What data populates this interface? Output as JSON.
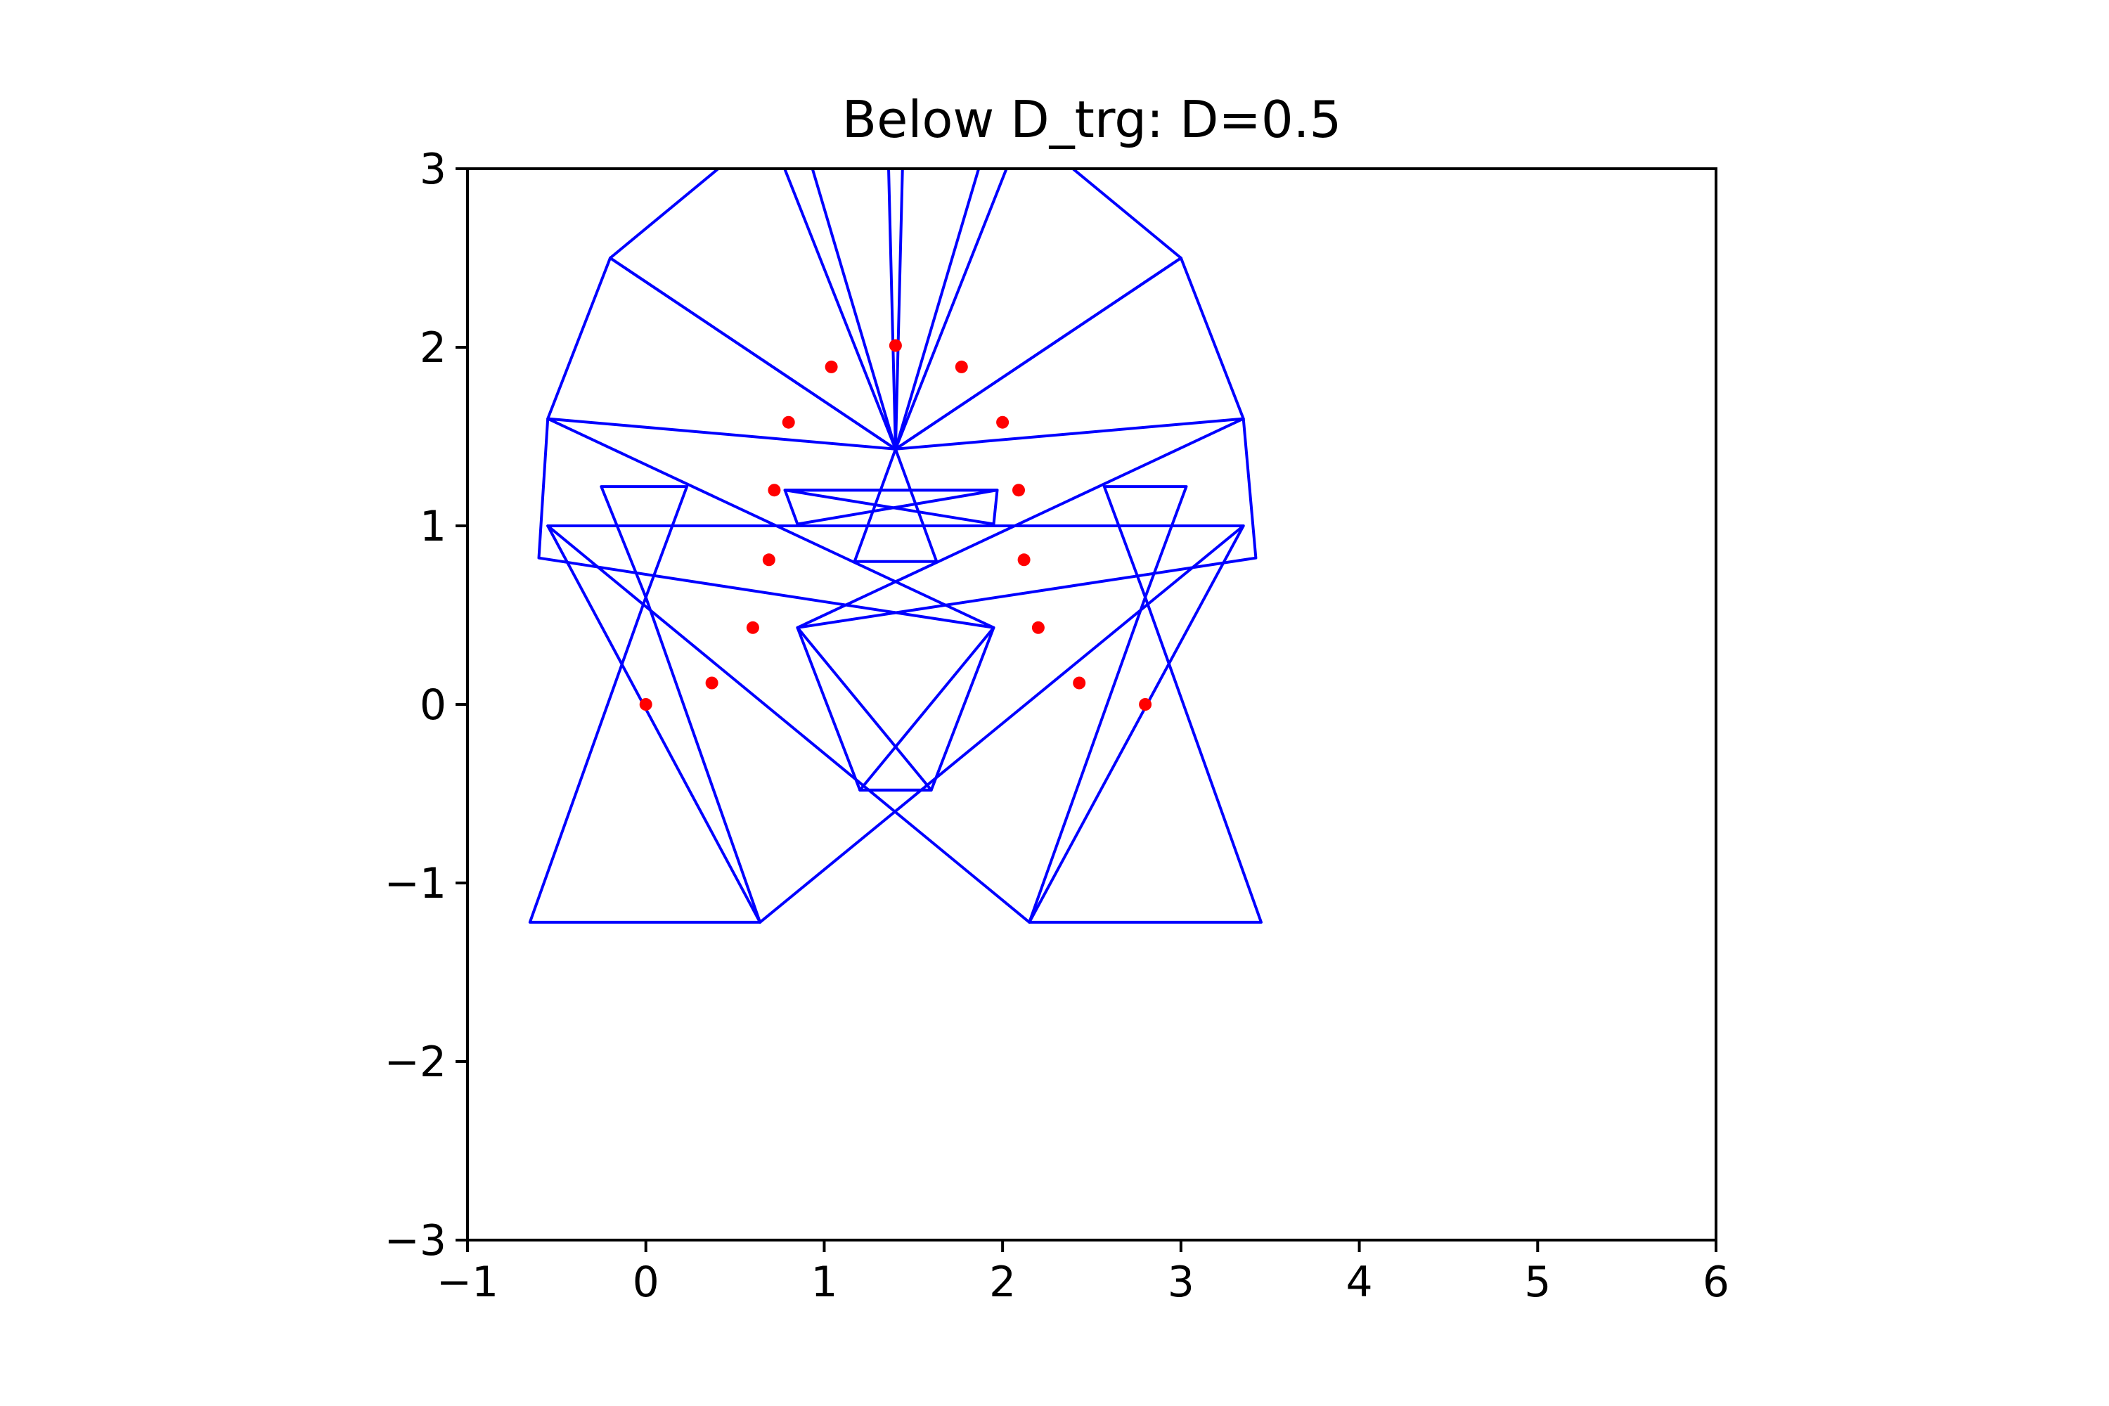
{
  "chart_data": {
    "type": "scatter",
    "title": "Below D_trg: D=0.5",
    "xlabel": "",
    "ylabel": "",
    "xlim": [
      -1,
      6
    ],
    "ylim": [
      -3,
      3
    ],
    "xticks": [
      -1,
      0,
      1,
      2,
      3,
      4,
      5,
      6
    ],
    "yticks": [
      -3,
      -2,
      -1,
      0,
      1,
      2,
      3
    ],
    "xtick_labels": [
      "−1",
      "0",
      "1",
      "2",
      "3",
      "4",
      "5",
      "6"
    ],
    "ytick_labels": [
      "−3",
      "−2",
      "−1",
      "0",
      "1",
      "2",
      "3"
    ],
    "grid": false,
    "colors": {
      "triangles": "#0000ff",
      "points": "#ff0000"
    },
    "points": [
      [
        0.0,
        0.0
      ],
      [
        0.37,
        0.12
      ],
      [
        0.6,
        0.43
      ],
      [
        0.69,
        0.81
      ],
      [
        0.72,
        1.2
      ],
      [
        0.8,
        1.58
      ],
      [
        1.04,
        1.89
      ],
      [
        1.4,
        2.01
      ],
      [
        1.77,
        1.89
      ],
      [
        2.0,
        1.58
      ],
      [
        2.09,
        1.2
      ],
      [
        2.12,
        0.81
      ],
      [
        2.2,
        0.43
      ],
      [
        2.43,
        0.12
      ],
      [
        2.8,
        0.0
      ]
    ],
    "triangles": [
      [
        [
          -0.65,
          -1.22
        ],
        [
          0.64,
          -1.22
        ],
        [
          0.0,
          0.6
        ]
      ],
      [
        [
          2.15,
          -1.22
        ],
        [
          3.45,
          -1.22
        ],
        [
          2.8,
          0.6
        ]
      ],
      [
        [
          0.64,
          -1.22
        ],
        [
          -0.55,
          1.0
        ],
        [
          3.35,
          1.0
        ]
      ],
      [
        [
          2.15,
          -1.22
        ],
        [
          -0.55,
          1.0
        ],
        [
          3.35,
          1.0
        ]
      ],
      [
        [
          -0.6,
          0.82
        ],
        [
          1.95,
          0.43
        ],
        [
          -0.55,
          1.6
        ]
      ],
      [
        [
          3.42,
          0.82
        ],
        [
          0.85,
          0.43
        ],
        [
          3.35,
          1.6
        ]
      ],
      [
        [
          1.2,
          -0.48
        ],
        [
          1.6,
          -0.48
        ],
        [
          0.85,
          0.43
        ]
      ],
      [
        [
          1.2,
          -0.48
        ],
        [
          1.6,
          -0.48
        ],
        [
          1.95,
          0.43
        ]
      ],
      [
        [
          0.0,
          0.6
        ],
        [
          -0.25,
          1.22
        ],
        [
          0.23,
          1.22
        ]
      ],
      [
        [
          2.8,
          0.6
        ],
        [
          2.57,
          1.22
        ],
        [
          3.03,
          1.22
        ]
      ],
      [
        [
          0.78,
          1.2
        ],
        [
          1.97,
          1.2
        ],
        [
          0.85,
          1.01
        ]
      ],
      [
        [
          0.78,
          1.2
        ],
        [
          1.97,
          1.2
        ],
        [
          1.95,
          1.01
        ]
      ],
      [
        [
          1.17,
          0.8
        ],
        [
          1.63,
          0.8
        ],
        [
          1.4,
          1.43
        ]
      ],
      [
        [
          -0.55,
          1.6
        ],
        [
          -0.2,
          2.5
        ],
        [
          1.4,
          1.43
        ]
      ],
      [
        [
          3.35,
          1.6
        ],
        [
          3.0,
          2.5
        ],
        [
          1.4,
          1.43
        ]
      ],
      [
        [
          -0.2,
          2.5
        ],
        [
          0.83,
          3.35
        ],
        [
          1.4,
          1.43
        ]
      ],
      [
        [
          3.0,
          2.5
        ],
        [
          1.97,
          3.35
        ],
        [
          1.4,
          1.43
        ]
      ],
      [
        [
          0.6,
          3.45
        ],
        [
          1.4,
          1.43
        ],
        [
          1.45,
          3.45
        ]
      ],
      [
        [
          2.2,
          3.45
        ],
        [
          1.4,
          1.43
        ],
        [
          1.35,
          3.45
        ]
      ]
    ]
  }
}
